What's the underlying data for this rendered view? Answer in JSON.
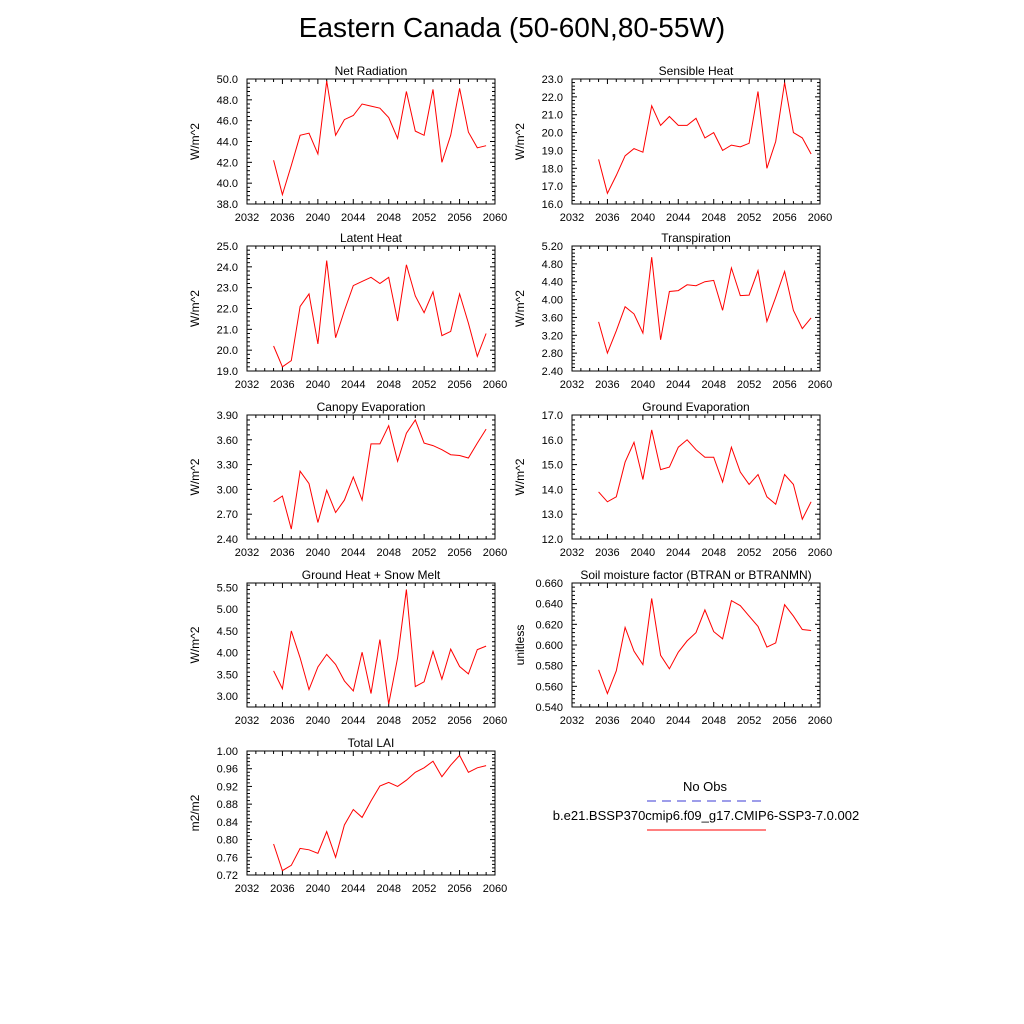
{
  "title": "Eastern Canada (50-60N,80-55W)",
  "legend": {
    "obs_label": "No Obs",
    "obs_color": "#3b3bd6",
    "case_label": "b.e21.BSSP370cmip6.f09_g17.CMIP6-SSP3-7.0.002",
    "case_color": "#ff0000"
  },
  "line_color": "#ff0000",
  "chart_data": [
    {
      "type": "line",
      "title": "Net Radiation",
      "ylabel": "W/m^2",
      "xlim": [
        2032,
        2060
      ],
      "ylim": [
        38.0,
        50.0
      ],
      "xticks": [
        "2032",
        "2036",
        "2040",
        "2044",
        "2048",
        "2052",
        "2056",
        "2060"
      ],
      "yticks": [
        "38.0",
        "40.0",
        "42.0",
        "44.0",
        "46.0",
        "48.0",
        "50.0"
      ],
      "x": [
        2035,
        2036,
        2037,
        2038,
        2039,
        2040,
        2041,
        2042,
        2043,
        2044,
        2045,
        2046,
        2047,
        2048,
        2049,
        2050,
        2051,
        2052,
        2053,
        2054,
        2055,
        2056,
        2057,
        2058,
        2059
      ],
      "values": [
        42.2,
        38.9,
        41.7,
        44.6,
        44.8,
        42.8,
        49.8,
        44.6,
        46.1,
        46.5,
        47.6,
        47.4,
        47.2,
        46.3,
        44.3,
        48.8,
        45.0,
        44.6,
        49.0,
        42.0,
        44.6,
        49.1,
        44.9,
        43.4,
        43.6
      ]
    },
    {
      "type": "line",
      "title": "Sensible Heat",
      "ylabel": "W/m^2",
      "xlim": [
        2032,
        2060
      ],
      "ylim": [
        16.0,
        23.0
      ],
      "xticks": [
        "2032",
        "2036",
        "2040",
        "2044",
        "2048",
        "2052",
        "2056",
        "2060"
      ],
      "yticks": [
        "16.0",
        "17.0",
        "18.0",
        "19.0",
        "20.0",
        "21.0",
        "22.0",
        "23.0"
      ],
      "x": [
        2035,
        2036,
        2037,
        2038,
        2039,
        2040,
        2041,
        2042,
        2043,
        2044,
        2045,
        2046,
        2047,
        2048,
        2049,
        2050,
        2051,
        2052,
        2053,
        2054,
        2055,
        2056,
        2057,
        2058,
        2059
      ],
      "values": [
        18.5,
        16.6,
        17.6,
        18.7,
        19.1,
        18.9,
        21.5,
        20.4,
        20.9,
        20.4,
        20.4,
        20.8,
        19.7,
        20.0,
        19.0,
        19.3,
        19.2,
        19.4,
        22.3,
        18.0,
        19.5,
        22.8,
        20.0,
        19.7,
        18.8
      ]
    },
    {
      "type": "line",
      "title": "Latent Heat",
      "ylabel": "W/m^2",
      "xlim": [
        2032,
        2060
      ],
      "ylim": [
        19.0,
        25.0
      ],
      "xticks": [
        "2032",
        "2036",
        "2040",
        "2044",
        "2048",
        "2052",
        "2056",
        "2060"
      ],
      "yticks": [
        "19.0",
        "20.0",
        "21.0",
        "22.0",
        "23.0",
        "24.0",
        "25.0"
      ],
      "x": [
        2035,
        2036,
        2037,
        2038,
        2039,
        2040,
        2041,
        2042,
        2043,
        2044,
        2045,
        2046,
        2047,
        2048,
        2049,
        2050,
        2051,
        2052,
        2053,
        2054,
        2055,
        2056,
        2057,
        2058,
        2059
      ],
      "values": [
        20.2,
        19.2,
        19.5,
        22.1,
        22.7,
        20.3,
        24.3,
        20.6,
        21.9,
        23.1,
        23.3,
        23.5,
        23.2,
        23.5,
        21.4,
        24.1,
        22.6,
        21.8,
        22.8,
        20.7,
        20.9,
        22.7,
        21.3,
        19.7,
        20.8
      ]
    },
    {
      "type": "line",
      "title": "Transpiration",
      "ylabel": "W/m^2",
      "xlim": [
        2032,
        2060
      ],
      "ylim": [
        2.4,
        5.2
      ],
      "xticks": [
        "2032",
        "2036",
        "2040",
        "2044",
        "2048",
        "2052",
        "2056",
        "2060"
      ],
      "yticks": [
        "2.40",
        "2.80",
        "3.20",
        "3.60",
        "4.00",
        "4.40",
        "4.80",
        "5.20"
      ],
      "x": [
        2035,
        2036,
        2037,
        2038,
        2039,
        2040,
        2041,
        2042,
        2043,
        2044,
        2045,
        2046,
        2047,
        2048,
        2049,
        2050,
        2051,
        2052,
        2053,
        2054,
        2055,
        2056,
        2057,
        2058,
        2059
      ],
      "values": [
        3.5,
        2.8,
        3.3,
        3.84,
        3.68,
        3.25,
        4.95,
        3.1,
        4.18,
        4.2,
        4.33,
        4.31,
        4.4,
        4.43,
        3.76,
        4.71,
        4.09,
        4.1,
        4.65,
        3.51,
        4.05,
        4.63,
        3.76,
        3.35,
        3.59
      ]
    },
    {
      "type": "line",
      "title": "Canopy Evaporation",
      "ylabel": "W/m^2",
      "xlim": [
        2032,
        2060
      ],
      "ylim": [
        2.4,
        3.9
      ],
      "xticks": [
        "2032",
        "2036",
        "2040",
        "2044",
        "2048",
        "2052",
        "2056",
        "2060"
      ],
      "yticks": [
        "2.40",
        "2.70",
        "3.00",
        "3.30",
        "3.60",
        "3.90"
      ],
      "x": [
        2035,
        2036,
        2037,
        2038,
        2039,
        2040,
        2041,
        2042,
        2043,
        2044,
        2045,
        2046,
        2047,
        2048,
        2049,
        2050,
        2051,
        2052,
        2053,
        2054,
        2055,
        2056,
        2057,
        2058,
        2059
      ],
      "values": [
        2.85,
        2.92,
        2.52,
        3.22,
        3.07,
        2.6,
        2.99,
        2.72,
        2.87,
        3.15,
        2.87,
        3.55,
        3.55,
        3.77,
        3.34,
        3.68,
        3.84,
        3.56,
        3.53,
        3.48,
        3.42,
        3.41,
        3.38,
        3.56,
        3.73
      ]
    },
    {
      "type": "line",
      "title": "Ground Evaporation",
      "ylabel": "W/m^2",
      "xlim": [
        2032,
        2060
      ],
      "ylim": [
        12.0,
        17.0
      ],
      "xticks": [
        "2032",
        "2036",
        "2040",
        "2044",
        "2048",
        "2052",
        "2056",
        "2060"
      ],
      "yticks": [
        "12.0",
        "13.0",
        "14.0",
        "15.0",
        "16.0",
        "17.0"
      ],
      "x": [
        2035,
        2036,
        2037,
        2038,
        2039,
        2040,
        2041,
        2042,
        2043,
        2044,
        2045,
        2046,
        2047,
        2048,
        2049,
        2050,
        2051,
        2052,
        2053,
        2054,
        2055,
        2056,
        2057,
        2058,
        2059
      ],
      "values": [
        13.9,
        13.5,
        13.7,
        15.1,
        15.9,
        14.4,
        16.4,
        14.8,
        14.9,
        15.7,
        16.0,
        15.6,
        15.3,
        15.3,
        14.3,
        15.7,
        14.7,
        14.2,
        14.6,
        13.7,
        13.4,
        14.6,
        14.2,
        12.8,
        13.5
      ]
    },
    {
      "type": "line",
      "title": "Ground Heat + Snow Melt",
      "ylabel": "W/m^2",
      "xlim": [
        2032,
        2060
      ],
      "ylim": [
        2.75,
        5.6
      ],
      "xticks": [
        "2032",
        "2036",
        "2040",
        "2044",
        "2048",
        "2052",
        "2056",
        "2060"
      ],
      "yticks": [
        "3.00",
        "3.50",
        "4.00",
        "4.50",
        "5.00",
        "5.50"
      ],
      "x": [
        2035,
        2036,
        2037,
        2038,
        2039,
        2040,
        2041,
        2042,
        2043,
        2044,
        2045,
        2046,
        2047,
        2048,
        2049,
        2050,
        2051,
        2052,
        2053,
        2054,
        2055,
        2056,
        2057,
        2058,
        2059
      ],
      "values": [
        3.58,
        3.17,
        4.5,
        3.88,
        3.15,
        3.67,
        3.96,
        3.73,
        3.35,
        3.12,
        4.01,
        3.06,
        4.3,
        2.82,
        3.88,
        5.45,
        3.22,
        3.33,
        4.03,
        3.39,
        4.08,
        3.68,
        3.51,
        4.07,
        4.15
      ]
    },
    {
      "type": "line",
      "title": "Soil moisture factor (BTRAN or BTRANMN)",
      "ylabel": "unitless",
      "xlim": [
        2032,
        2060
      ],
      "ylim": [
        0.54,
        0.66
      ],
      "xticks": [
        "2032",
        "2036",
        "2040",
        "2044",
        "2048",
        "2052",
        "2056",
        "2060"
      ],
      "yticks": [
        "0.540",
        "0.560",
        "0.580",
        "0.600",
        "0.620",
        "0.640",
        "0.660"
      ],
      "x": [
        2035,
        2036,
        2037,
        2038,
        2039,
        2040,
        2041,
        2042,
        2043,
        2044,
        2045,
        2046,
        2047,
        2048,
        2049,
        2050,
        2051,
        2052,
        2053,
        2054,
        2055,
        2056,
        2057,
        2058,
        2059
      ],
      "values": [
        0.576,
        0.553,
        0.575,
        0.617,
        0.594,
        0.581,
        0.645,
        0.59,
        0.577,
        0.593,
        0.604,
        0.612,
        0.634,
        0.613,
        0.606,
        0.643,
        0.638,
        0.628,
        0.618,
        0.598,
        0.602,
        0.639,
        0.628,
        0.615,
        0.614
      ]
    },
    {
      "type": "line",
      "title": "Total LAI",
      "ylabel": "m2/m2",
      "xlim": [
        2032,
        2060
      ],
      "ylim": [
        0.72,
        1.0
      ],
      "xticks": [
        "2032",
        "2036",
        "2040",
        "2044",
        "2048",
        "2052",
        "2056",
        "2060"
      ],
      "yticks": [
        "0.72",
        "0.76",
        "0.80",
        "0.84",
        "0.88",
        "0.92",
        "0.96",
        "1.00"
      ],
      "x": [
        2035,
        2036,
        2037,
        2038,
        2039,
        2040,
        2041,
        2042,
        2043,
        2044,
        2045,
        2046,
        2047,
        2048,
        2049,
        2050,
        2051,
        2052,
        2053,
        2054,
        2055,
        2056,
        2057,
        2058,
        2059
      ],
      "values": [
        0.79,
        0.73,
        0.742,
        0.78,
        0.777,
        0.769,
        0.818,
        0.76,
        0.833,
        0.868,
        0.85,
        0.887,
        0.921,
        0.929,
        0.92,
        0.934,
        0.952,
        0.962,
        0.977,
        0.942,
        0.968,
        0.99,
        0.952,
        0.962,
        0.967
      ]
    }
  ]
}
